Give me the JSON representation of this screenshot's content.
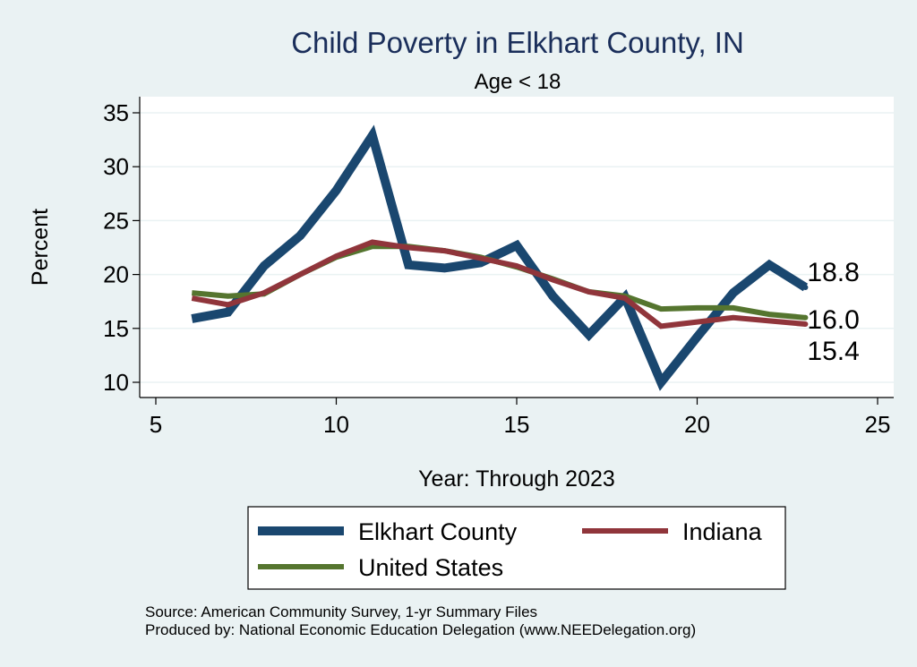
{
  "chart_data": {
    "type": "line",
    "title": "Child Poverty in Elkhart County, IN",
    "subtitle": "Age < 18",
    "xlabel": "Year: Through 2023",
    "ylabel": "Percent",
    "xlim": [
      5,
      25
    ],
    "ylim": [
      8.5,
      36
    ],
    "xticks": [
      5,
      10,
      15,
      20,
      25
    ],
    "yticks": [
      10,
      15,
      20,
      25,
      30,
      35
    ],
    "grid": true,
    "legend_position": "bottom",
    "series": [
      {
        "name": "Elkhart County",
        "color": "#1a476f",
        "width": 10,
        "x": [
          6,
          7,
          8,
          9,
          10,
          11,
          12,
          13,
          14,
          15,
          16,
          17,
          18,
          19,
          20,
          21,
          22,
          23
        ],
        "values": [
          15.9,
          16.5,
          20.8,
          23.6,
          27.8,
          32.9,
          20.9,
          20.6,
          21.1,
          22.7,
          18.0,
          14.4,
          17.9,
          10.0,
          14.2,
          18.3,
          20.9,
          18.8
        ],
        "end_label": "18.8"
      },
      {
        "name": "Indiana",
        "color": "#90353b",
        "width": 6,
        "x": [
          6,
          7,
          8,
          9,
          10,
          11,
          12,
          13,
          14,
          15,
          16,
          17,
          18,
          19,
          20,
          21,
          22,
          23
        ],
        "values": [
          17.8,
          17.2,
          18.3,
          20.0,
          21.7,
          23.0,
          22.5,
          22.2,
          21.5,
          20.8,
          19.5,
          18.4,
          17.8,
          15.2,
          15.6,
          16.0,
          15.7,
          15.4
        ],
        "end_label": "15.4"
      },
      {
        "name": "United States",
        "color": "#55752f",
        "width": 6,
        "x": [
          6,
          7,
          8,
          9,
          10,
          11,
          12,
          13,
          14,
          15,
          16,
          17,
          18,
          19,
          20,
          21,
          22,
          23
        ],
        "values": [
          18.3,
          18.0,
          18.2,
          20.0,
          21.6,
          22.6,
          22.6,
          22.2,
          21.6,
          20.7,
          19.6,
          18.4,
          18.0,
          16.8,
          16.9,
          16.9,
          16.3,
          16.0
        ],
        "end_label": "16.0"
      }
    ],
    "notes": [
      "Source: American Community Survey, 1-yr Summary Files",
      "Produced by: National Economic Education Delegation (www.NEEDelegation.org)"
    ]
  }
}
